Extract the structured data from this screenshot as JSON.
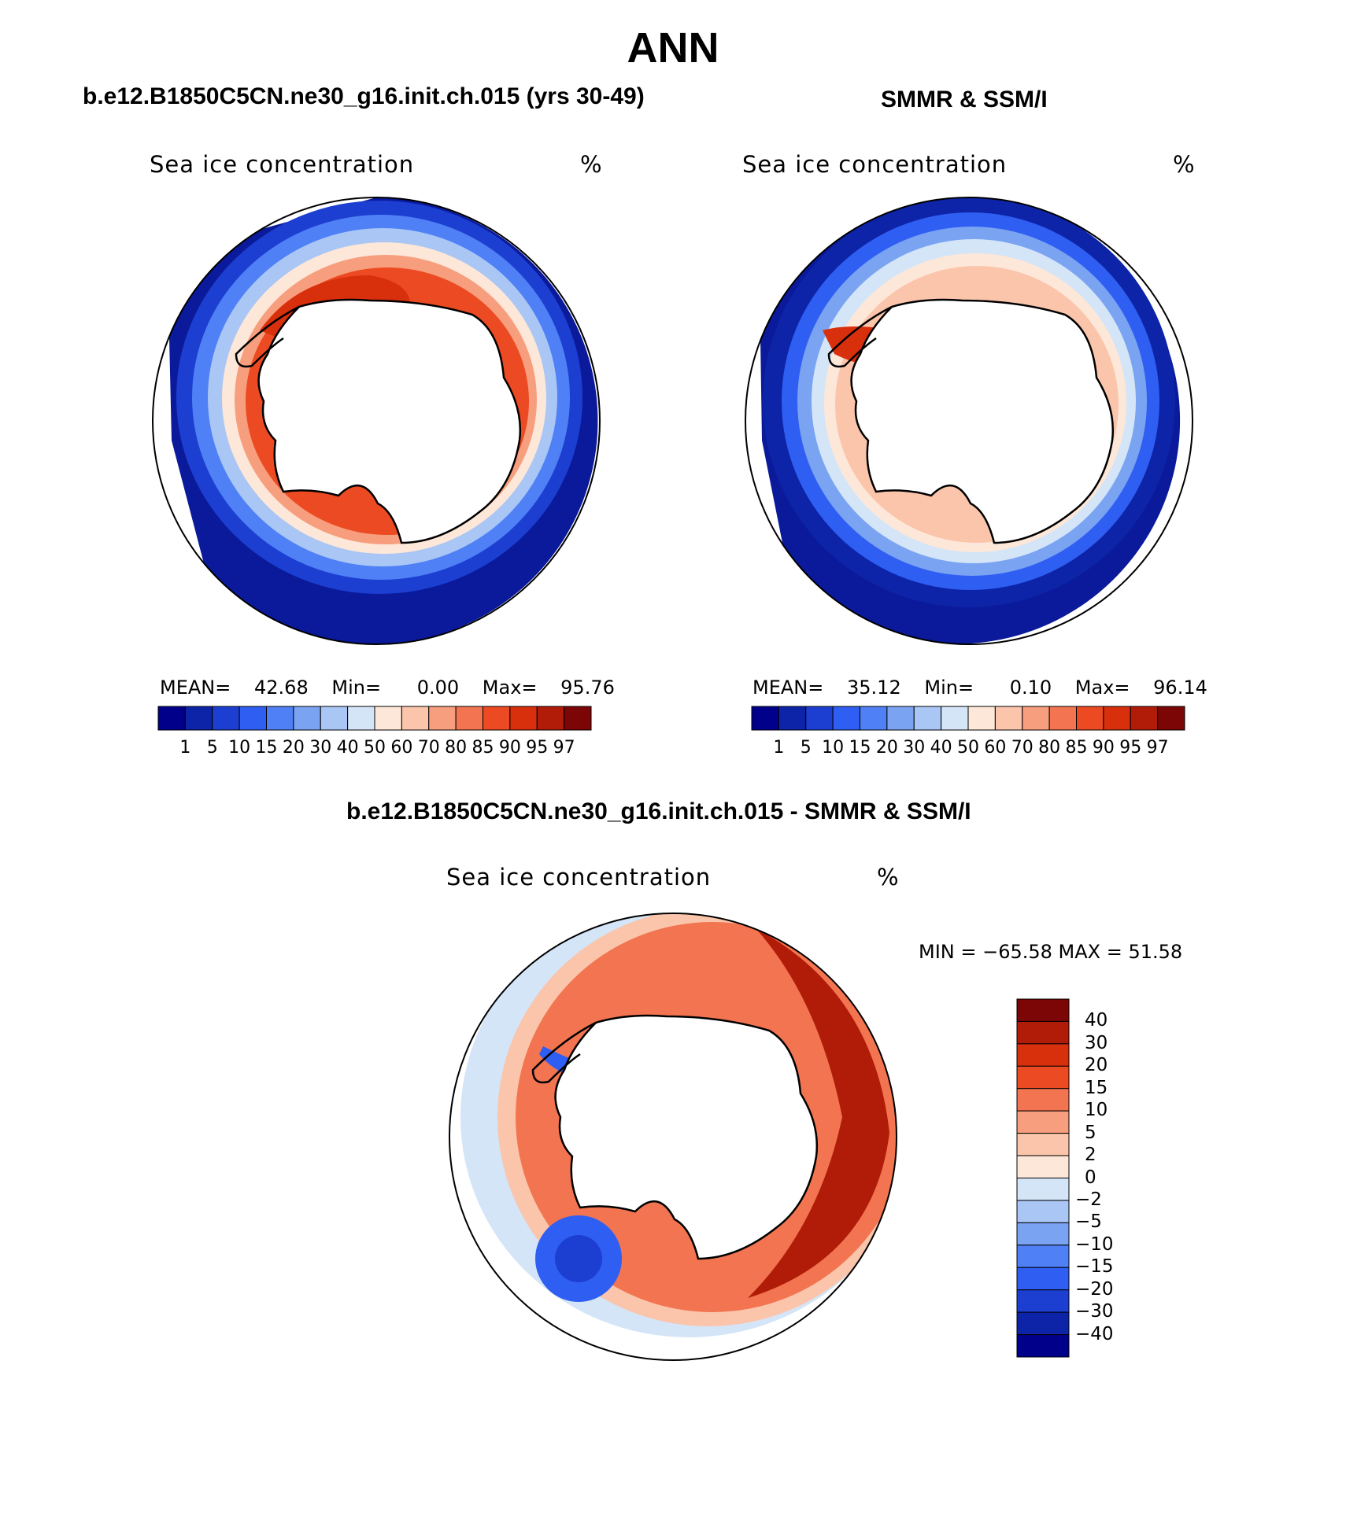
{
  "page": {
    "title": "ANN",
    "left_panel_title": "b.e12.B1850C5CN.ne30_g16.init.ch.015 (yrs 30-49)",
    "right_panel_title": "SMMR & SSM/I",
    "diff_panel_title": "b.e12.B1850C5CN.ne30_g16.init.ch.015 - SMMR & SSM/I"
  },
  "panels": {
    "model": {
      "variable": "Sea ice concentration",
      "units": "%",
      "mean_label": "MEAN=",
      "mean": "42.68",
      "min_label": "Min=",
      "min": "0.00",
      "max_label": "Max=",
      "max": "95.76"
    },
    "obs": {
      "variable": "Sea ice concentration",
      "units": "%",
      "mean_label": "MEAN=",
      "mean": "35.12",
      "min_label": "Min=",
      "min": "0.10",
      "max_label": "Max=",
      "max": "96.14"
    },
    "diff": {
      "variable": "Sea ice concentration",
      "units": "%",
      "minmax_text": "MIN = −65.58 MAX =   51.58"
    }
  },
  "colorbars": {
    "concentration": {
      "levels": [
        "1",
        "5",
        "10",
        "15",
        "20",
        "30",
        "40",
        "50",
        "60",
        "70",
        "80",
        "85",
        "90",
        "95",
        "97"
      ],
      "colors": [
        "#00008a",
        "#0d24a8",
        "#1c3fd1",
        "#2f5ef2",
        "#4f80f5",
        "#7aa3f2",
        "#a9c6f5",
        "#d4e5f8",
        "#fde7d8",
        "#fbc5ac",
        "#f79e7e",
        "#f27450",
        "#ec4a22",
        "#d82f0d",
        "#b01c08",
        "#7c0505"
      ]
    },
    "difference": {
      "levels": [
        "40",
        "30",
        "20",
        "15",
        "10",
        "5",
        "2",
        "0",
        "−2",
        "−5",
        "−10",
        "−15",
        "−20",
        "−30",
        "−40"
      ],
      "colors": [
        "#7c0505",
        "#b01c08",
        "#d82f0d",
        "#ec4a22",
        "#f27450",
        "#f79e7e",
        "#fbc5ac",
        "#fde7d8",
        "#d4e5f8",
        "#a9c6f5",
        "#7aa3f2",
        "#4f80f5",
        "#2f5ef2",
        "#1c3fd1",
        "#0d24a8",
        "#00008a"
      ]
    }
  }
}
